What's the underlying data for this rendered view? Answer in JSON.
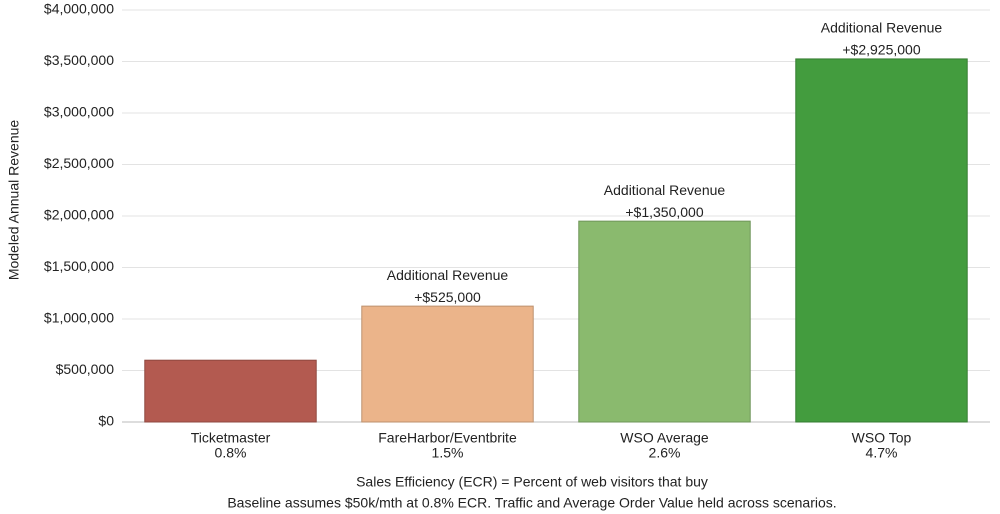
{
  "chart_data": {
    "type": "bar",
    "y_axis_label": "Modeled Annual Revenue",
    "categories": [
      "Ticketmaster",
      "FareHarbor/Eventbrite",
      "WSO Average",
      "WSO Top"
    ],
    "category_sublabels": [
      "0.8%",
      "1.5%",
      "2.6%",
      "4.7%"
    ],
    "values": [
      600000,
      1125000,
      1950000,
      3525000
    ],
    "colors": [
      "#b35a50",
      "#ebb48a",
      "#8aba6e",
      "#439c3e"
    ],
    "additional_revenue": {
      "title": "Additional Revenue",
      "values": [
        null,
        525000,
        1350000,
        2925000
      ],
      "value_labels": [
        null,
        "+$525,000",
        "+$1,350,000",
        "+$2,925,000"
      ]
    },
    "ylim": [
      0,
      4000000
    ],
    "yticks": [
      {
        "value": 0,
        "label": "$0"
      },
      {
        "value": 500000,
        "label": "$500,000"
      },
      {
        "value": 1000000,
        "label": "$1,000,000"
      },
      {
        "value": 1500000,
        "label": "$1,500,000"
      },
      {
        "value": 2000000,
        "label": "$2,000,000"
      },
      {
        "value": 2500000,
        "label": "$2,500,000"
      },
      {
        "value": 3000000,
        "label": "$3,000,000"
      },
      {
        "value": 3500000,
        "label": "$3,500,000"
      },
      {
        "value": 4000000,
        "label": "$4,000,000"
      }
    ],
    "grid": true,
    "footnotes": [
      "Sales Efficiency (ECR) = Percent of web visitors that buy",
      "Baseline assumes $50k/mth at 0.8% ECR. Traffic and Average Order Value held across scenarios."
    ]
  }
}
